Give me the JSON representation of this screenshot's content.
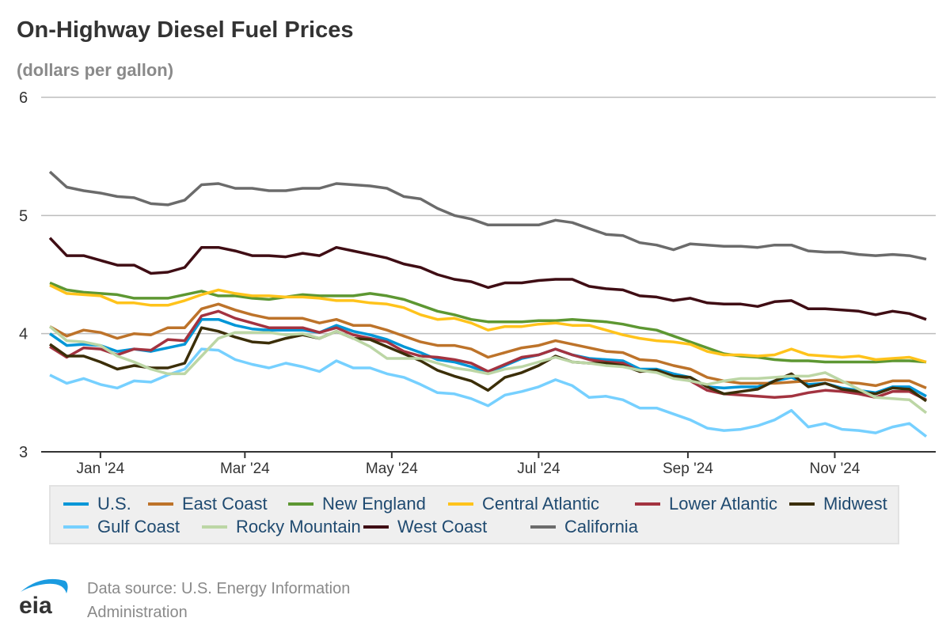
{
  "chart_data": {
    "type": "line",
    "title": "On-Highway Diesel Fuel Prices",
    "subtitle": "(dollars per gallon)",
    "xlabel": "",
    "ylabel": "",
    "ylim": [
      3,
      6
    ],
    "yticks": [
      "3",
      "4",
      "5",
      "6"
    ],
    "xticks": [
      {
        "date": "2024-01-01",
        "label": "Jan '24"
      },
      {
        "date": "2024-03-01",
        "label": "Mar '24"
      },
      {
        "date": "2024-05-01",
        "label": "May '24"
      },
      {
        "date": "2024-07-01",
        "label": "Jul '24"
      },
      {
        "date": "2024-09-01",
        "label": "Sep '24"
      },
      {
        "date": "2024-11-01",
        "label": "Nov '24"
      }
    ],
    "grid": true,
    "legend_position": "bottom",
    "x": [
      "2023-12-11",
      "2023-12-18",
      "2023-12-25",
      "2024-01-01",
      "2024-01-08",
      "2024-01-15",
      "2024-01-22",
      "2024-01-29",
      "2024-02-05",
      "2024-02-12",
      "2024-02-19",
      "2024-02-26",
      "2024-03-04",
      "2024-03-11",
      "2024-03-18",
      "2024-03-25",
      "2024-04-01",
      "2024-04-08",
      "2024-04-15",
      "2024-04-22",
      "2024-04-29",
      "2024-05-06",
      "2024-05-13",
      "2024-05-20",
      "2024-05-27",
      "2024-06-03",
      "2024-06-10",
      "2024-06-17",
      "2024-06-24",
      "2024-07-01",
      "2024-07-08",
      "2024-07-15",
      "2024-07-22",
      "2024-07-29",
      "2024-08-05",
      "2024-08-12",
      "2024-08-19",
      "2024-08-26",
      "2024-09-02",
      "2024-09-09",
      "2024-09-16",
      "2024-09-23",
      "2024-09-30",
      "2024-10-07",
      "2024-10-14",
      "2024-10-21",
      "2024-10-28",
      "2024-11-04",
      "2024-11-11",
      "2024-11-18",
      "2024-11-25",
      "2024-12-02",
      "2024-12-09"
    ],
    "series": [
      {
        "name": "U.S.",
        "color": "#0096d7",
        "values": [
          4.0,
          3.9,
          3.91,
          3.9,
          3.85,
          3.87,
          3.85,
          3.88,
          3.91,
          4.12,
          4.12,
          4.07,
          4.04,
          4.03,
          4.03,
          4.03,
          4.01,
          4.07,
          4.02,
          3.99,
          3.95,
          3.89,
          3.84,
          3.78,
          3.76,
          3.72,
          3.67,
          3.73,
          3.79,
          3.82,
          3.87,
          3.82,
          3.79,
          3.78,
          3.77,
          3.7,
          3.7,
          3.66,
          3.63,
          3.55,
          3.54,
          3.55,
          3.55,
          3.6,
          3.63,
          3.57,
          3.58,
          3.54,
          3.52,
          3.5,
          3.55,
          3.55,
          3.47
        ]
      },
      {
        "name": "East Coast",
        "color": "#bd732a",
        "values": [
          4.06,
          3.98,
          4.03,
          4.01,
          3.96,
          4.0,
          3.99,
          4.05,
          4.05,
          4.21,
          4.25,
          4.2,
          4.16,
          4.13,
          4.13,
          4.13,
          4.09,
          4.12,
          4.07,
          4.07,
          4.03,
          3.98,
          3.93,
          3.9,
          3.9,
          3.87,
          3.8,
          3.84,
          3.88,
          3.9,
          3.94,
          3.91,
          3.88,
          3.85,
          3.84,
          3.78,
          3.77,
          3.73,
          3.7,
          3.63,
          3.6,
          3.58,
          3.58,
          3.58,
          3.59,
          3.6,
          3.61,
          3.59,
          3.58,
          3.56,
          3.6,
          3.6,
          3.54
        ]
      },
      {
        "name": "New England",
        "color": "#5d9732",
        "values": [
          4.43,
          4.37,
          4.35,
          4.34,
          4.33,
          4.3,
          4.3,
          4.3,
          4.33,
          4.36,
          4.32,
          4.32,
          4.3,
          4.29,
          4.31,
          4.33,
          4.32,
          4.32,
          4.32,
          4.34,
          4.32,
          4.29,
          4.24,
          4.19,
          4.16,
          4.12,
          4.1,
          4.1,
          4.1,
          4.11,
          4.11,
          4.12,
          4.11,
          4.1,
          4.08,
          4.05,
          4.03,
          3.98,
          3.93,
          3.88,
          3.83,
          3.81,
          3.8,
          3.78,
          3.77,
          3.77,
          3.76,
          3.76,
          3.76,
          3.76,
          3.77,
          3.77,
          3.76
        ]
      },
      {
        "name": "Central Atlantic",
        "color": "#ffc31b",
        "values": [
          4.41,
          4.34,
          4.33,
          4.32,
          4.26,
          4.26,
          4.24,
          4.24,
          4.28,
          4.33,
          4.37,
          4.34,
          4.32,
          4.32,
          4.31,
          4.31,
          4.3,
          4.28,
          4.28,
          4.26,
          4.25,
          4.22,
          4.16,
          4.12,
          4.13,
          4.09,
          4.03,
          4.06,
          4.06,
          4.08,
          4.09,
          4.07,
          4.07,
          4.03,
          3.99,
          3.96,
          3.94,
          3.93,
          3.91,
          3.85,
          3.82,
          3.82,
          3.81,
          3.82,
          3.87,
          3.82,
          3.81,
          3.8,
          3.81,
          3.78,
          3.79,
          3.8,
          3.76
        ]
      },
      {
        "name": "Lower Atlantic",
        "color": "#a33340",
        "values": [
          3.89,
          3.8,
          3.88,
          3.87,
          3.82,
          3.87,
          3.86,
          3.95,
          3.94,
          4.15,
          4.19,
          4.13,
          4.09,
          4.05,
          4.05,
          4.05,
          4.01,
          4.05,
          3.99,
          3.96,
          3.93,
          3.85,
          3.81,
          3.8,
          3.78,
          3.75,
          3.68,
          3.74,
          3.8,
          3.82,
          3.87,
          3.82,
          3.78,
          3.76,
          3.75,
          3.68,
          3.69,
          3.64,
          3.6,
          3.52,
          3.49,
          3.48,
          3.47,
          3.46,
          3.47,
          3.5,
          3.52,
          3.51,
          3.49,
          3.46,
          3.51,
          3.51,
          3.44
        ]
      },
      {
        "name": "Midwest",
        "color": "#3b2e08",
        "values": [
          3.91,
          3.81,
          3.81,
          3.76,
          3.7,
          3.73,
          3.71,
          3.71,
          3.75,
          4.05,
          4.02,
          3.97,
          3.93,
          3.92,
          3.96,
          3.99,
          3.96,
          4.02,
          3.96,
          3.95,
          3.89,
          3.83,
          3.77,
          3.69,
          3.64,
          3.6,
          3.52,
          3.63,
          3.67,
          3.73,
          3.81,
          3.76,
          3.75,
          3.75,
          3.73,
          3.68,
          3.69,
          3.64,
          3.63,
          3.55,
          3.49,
          3.51,
          3.53,
          3.6,
          3.66,
          3.55,
          3.58,
          3.53,
          3.51,
          3.49,
          3.54,
          3.53,
          3.43
        ]
      },
      {
        "name": "Gulf Coast",
        "color": "#76d0ff",
        "values": [
          3.65,
          3.58,
          3.62,
          3.57,
          3.54,
          3.6,
          3.59,
          3.65,
          3.7,
          3.87,
          3.86,
          3.78,
          3.74,
          3.71,
          3.75,
          3.72,
          3.68,
          3.77,
          3.71,
          3.71,
          3.66,
          3.63,
          3.57,
          3.5,
          3.49,
          3.45,
          3.39,
          3.48,
          3.51,
          3.55,
          3.61,
          3.56,
          3.46,
          3.47,
          3.44,
          3.37,
          3.37,
          3.32,
          3.27,
          3.2,
          3.18,
          3.19,
          3.22,
          3.27,
          3.35,
          3.21,
          3.24,
          3.19,
          3.18,
          3.16,
          3.21,
          3.24,
          3.13
        ]
      },
      {
        "name": "Rocky Mountain",
        "color": "#bcd6a5",
        "values": [
          4.06,
          3.94,
          3.93,
          3.9,
          3.81,
          3.76,
          3.7,
          3.66,
          3.66,
          3.81,
          3.96,
          4.01,
          4.01,
          4.01,
          3.99,
          4.0,
          3.96,
          4.02,
          3.96,
          3.89,
          3.79,
          3.79,
          3.79,
          3.75,
          3.71,
          3.69,
          3.66,
          3.7,
          3.72,
          3.76,
          3.8,
          3.76,
          3.75,
          3.73,
          3.72,
          3.69,
          3.67,
          3.62,
          3.6,
          3.57,
          3.6,
          3.62,
          3.62,
          3.63,
          3.64,
          3.64,
          3.67,
          3.6,
          3.53,
          3.46,
          3.45,
          3.44,
          3.33
        ]
      },
      {
        "name": "West Coast",
        "color": "#3f0d14",
        "values": [
          4.81,
          4.66,
          4.66,
          4.62,
          4.58,
          4.58,
          4.51,
          4.52,
          4.56,
          4.73,
          4.73,
          4.7,
          4.66,
          4.66,
          4.65,
          4.68,
          4.66,
          4.73,
          4.7,
          4.67,
          4.64,
          4.59,
          4.56,
          4.5,
          4.46,
          4.44,
          4.39,
          4.43,
          4.43,
          4.45,
          4.46,
          4.46,
          4.4,
          4.38,
          4.37,
          4.32,
          4.31,
          4.28,
          4.3,
          4.26,
          4.25,
          4.25,
          4.23,
          4.27,
          4.28,
          4.21,
          4.21,
          4.2,
          4.19,
          4.16,
          4.19,
          4.17,
          4.12
        ]
      },
      {
        "name": "California",
        "color": "#6b6b6b",
        "values": [
          5.37,
          5.24,
          5.21,
          5.19,
          5.16,
          5.15,
          5.1,
          5.09,
          5.13,
          5.26,
          5.27,
          5.23,
          5.23,
          5.21,
          5.21,
          5.23,
          5.23,
          5.27,
          5.26,
          5.25,
          5.23,
          5.16,
          5.14,
          5.06,
          5.0,
          4.97,
          4.92,
          4.92,
          4.92,
          4.92,
          4.96,
          4.94,
          4.89,
          4.84,
          4.83,
          4.77,
          4.75,
          4.71,
          4.76,
          4.75,
          4.74,
          4.74,
          4.73,
          4.75,
          4.75,
          4.7,
          4.69,
          4.69,
          4.67,
          4.66,
          4.67,
          4.66,
          4.63
        ]
      }
    ]
  },
  "source": {
    "text": "Data source: U.S. Energy Information Administration",
    "logo_text": "eia"
  }
}
